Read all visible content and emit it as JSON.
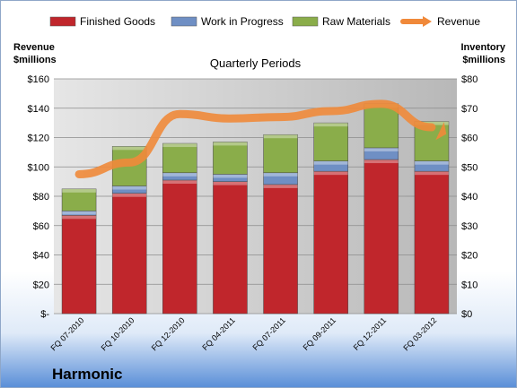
{
  "legend": [
    {
      "label": "Finished Goods",
      "color": "#c0262c"
    },
    {
      "label": "Work in Progress",
      "color": "#6f8fc4"
    },
    {
      "label": "Raw Materials",
      "color": "#8aad4a"
    },
    {
      "label": "Revenue",
      "color": "#f0893a"
    }
  ],
  "left_axis_title": [
    "Revenue",
    "$millions"
  ],
  "right_axis_title": [
    "Inventory",
    "$millions"
  ],
  "company": "Harmonic",
  "chart_data": {
    "type": "bar",
    "title": "Quarterly Periods",
    "categories": [
      "FQ 07-2010",
      "FQ 10-2010",
      "FQ 12-2010",
      "FQ 04-2011",
      "FQ 07-2011",
      "FQ 09-2011",
      "FQ 12-2011",
      "FQ 03-2012"
    ],
    "stacked": true,
    "series": [
      {
        "name": "Finished Goods",
        "axis": "right",
        "values": [
          33.5,
          41,
          45.5,
          45,
          44,
          48.5,
          52.5,
          48.5
        ]
      },
      {
        "name": "Work in Progress",
        "axis": "right",
        "values": [
          1.5,
          2.5,
          2.5,
          2.5,
          4,
          3.5,
          4,
          3.5
        ]
      },
      {
        "name": "Raw Materials",
        "axis": "right",
        "values": [
          7.5,
          13.5,
          10,
          11,
          13,
          13,
          15,
          13.5
        ]
      },
      {
        "name": "Revenue",
        "axis": "left",
        "type": "line",
        "values": [
          95,
          103,
          136,
          133,
          134,
          138,
          143,
          127
        ]
      }
    ],
    "left_axis": {
      "ylim": [
        0,
        160
      ],
      "ticks": [
        "$-",
        "$20",
        "$40",
        "$60",
        "$80",
        "$100",
        "$120",
        "$140",
        "$160"
      ]
    },
    "right_axis": {
      "ylim": [
        0,
        80
      ],
      "ticks": [
        "$0",
        "$10",
        "$20",
        "$30",
        "$40",
        "$50",
        "$60",
        "$70",
        "$80"
      ]
    },
    "grid": true,
    "legend_position": "top"
  }
}
